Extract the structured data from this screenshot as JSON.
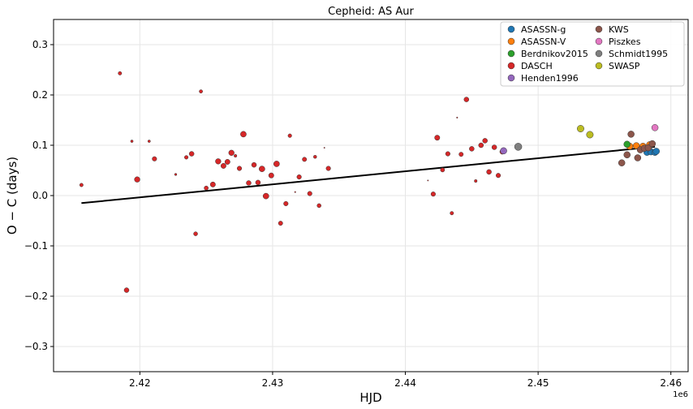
{
  "chart_data": {
    "type": "scatter",
    "title": "Cepheid: AS Aur",
    "xlabel": "HJD",
    "ylabel": "O − C (days)",
    "x_offset_label": "1e6",
    "xlim": [
      2.4135,
      2.4613
    ],
    "ylim": [
      -0.35,
      0.35
    ],
    "xticks": [
      2.42,
      2.43,
      2.44,
      2.45,
      2.46
    ],
    "xtick_labels": [
      "2.42",
      "2.43",
      "2.44",
      "2.45",
      "2.46"
    ],
    "yticks": [
      -0.3,
      -0.2,
      -0.1,
      0.0,
      0.1,
      0.2,
      0.3
    ],
    "ytick_labels": [
      "−0.3",
      "−0.2",
      "−0.1",
      "0.0",
      "0.1",
      "0.2",
      "0.3"
    ],
    "grid": true,
    "legend_position": "top-right",
    "legend_columns": 2,
    "fit_line": {
      "x": [
        2.4156,
        2.4588
      ],
      "y": [
        -0.015,
        0.097
      ],
      "color": "#000000"
    },
    "series": [
      {
        "name": "ASASSN-g",
        "color": "#1f77b4",
        "size": 4,
        "points": [
          [
            2.4582,
            0.086
          ],
          [
            2.4585,
            0.087
          ],
          [
            2.4588,
            0.086
          ],
          [
            2.4589,
            0.088
          ]
        ]
      },
      {
        "name": "ASASSN-V",
        "color": "#ff7f0e",
        "size": 4,
        "points": [
          [
            2.4569,
            0.098
          ],
          [
            2.4574,
            0.099
          ],
          [
            2.4579,
            0.098
          ],
          [
            2.4584,
            0.101
          ]
        ]
      },
      {
        "name": "Berdnikov2015",
        "color": "#2ca02c",
        "size": 4,
        "points": [
          [
            2.4567,
            0.102
          ]
        ]
      },
      {
        "name": "DASCH",
        "color": "#d62728",
        "size": 3,
        "points": [
          [
            2.4156,
            0.021,
            2.2
          ],
          [
            2.4185,
            0.243,
            2.2
          ],
          [
            2.419,
            -0.188,
            3
          ],
          [
            2.4194,
            0.108,
            1.6
          ],
          [
            2.4198,
            0.032,
            3.4
          ],
          [
            2.4207,
            0.108,
            1.6
          ],
          [
            2.4211,
            0.073,
            2.8
          ],
          [
            2.4227,
            0.042,
            1.4
          ],
          [
            2.4235,
            0.076,
            2.3
          ],
          [
            2.4239,
            0.083,
            3
          ],
          [
            2.4242,
            -0.076,
            2.5
          ],
          [
            2.4246,
            0.207,
            2.1
          ],
          [
            2.425,
            0.015,
            2.6
          ],
          [
            2.4255,
            0.022,
            3.2
          ],
          [
            2.4259,
            0.068,
            3.4
          ],
          [
            2.4263,
            0.059,
            3.2
          ],
          [
            2.4266,
            0.067,
            3.2
          ],
          [
            2.4269,
            0.085,
            3.4
          ],
          [
            2.4272,
            0.079,
            1.8
          ],
          [
            2.4275,
            0.054,
            2.8
          ],
          [
            2.4278,
            0.122,
            3.6
          ],
          [
            2.4282,
            0.025,
            3
          ],
          [
            2.4286,
            0.061,
            3
          ],
          [
            2.4289,
            0.026,
            3
          ],
          [
            2.4292,
            0.053,
            3.6
          ],
          [
            2.4295,
            -0.001,
            3.6
          ],
          [
            2.4299,
            0.04,
            3.2
          ],
          [
            2.4303,
            0.063,
            3.6
          ],
          [
            2.4306,
            -0.055,
            2.7
          ],
          [
            2.431,
            -0.016,
            2.8
          ],
          [
            2.4313,
            0.119,
            2.3
          ],
          [
            2.4317,
            0.007,
            0.8
          ],
          [
            2.432,
            0.037,
            2.8
          ],
          [
            2.4324,
            0.072,
            2.7
          ],
          [
            2.4328,
            0.004,
            2.8
          ],
          [
            2.4332,
            0.077,
            2
          ],
          [
            2.4335,
            -0.02,
            2.5
          ],
          [
            2.4339,
            0.095,
            0.7
          ],
          [
            2.4342,
            0.054,
            2.8
          ],
          [
            2.4417,
            0.03,
            0.7
          ],
          [
            2.4421,
            0.003,
            2.8
          ],
          [
            2.4424,
            0.115,
            3.2
          ],
          [
            2.4428,
            0.051,
            2.6
          ],
          [
            2.4432,
            0.083,
            2.8
          ],
          [
            2.4435,
            -0.035,
            2.2
          ],
          [
            2.4439,
            0.155,
            0.8
          ],
          [
            2.4442,
            0.082,
            2.7
          ],
          [
            2.4446,
            0.191,
            3
          ],
          [
            2.445,
            0.093,
            3
          ],
          [
            2.4453,
            0.029,
            1.8
          ],
          [
            2.4457,
            0.1,
            3
          ],
          [
            2.446,
            0.109,
            3
          ],
          [
            2.4463,
            0.047,
            3
          ],
          [
            2.4467,
            0.096,
            3
          ],
          [
            2.447,
            0.04,
            2.8
          ],
          [
            2.4473,
            0.087,
            3
          ]
        ]
      },
      {
        "name": "Henden1996",
        "color": "#9467bd",
        "size": 4,
        "points": [
          [
            2.4474,
            0.089
          ]
        ]
      },
      {
        "name": "KWS",
        "color": "#8c564b",
        "size": 4,
        "points": [
          [
            2.4563,
            0.065
          ],
          [
            2.4567,
            0.081
          ],
          [
            2.457,
            0.122
          ],
          [
            2.4575,
            0.075
          ],
          [
            2.4577,
            0.091
          ],
          [
            2.458,
            0.094
          ],
          [
            2.4583,
            0.095
          ],
          [
            2.4586,
            0.103
          ]
        ]
      },
      {
        "name": "Piszkes",
        "color": "#e377c2",
        "size": 4,
        "points": [
          [
            2.4588,
            0.135
          ]
        ]
      },
      {
        "name": "Schmidt1995",
        "color": "#7f7f7f",
        "size": 4.5,
        "points": [
          [
            2.4485,
            0.097
          ]
        ]
      },
      {
        "name": "SWASP",
        "color": "#bcbd22",
        "size": 4.2,
        "points": [
          [
            2.4532,
            0.133
          ],
          [
            2.4539,
            0.121
          ]
        ]
      }
    ]
  }
}
